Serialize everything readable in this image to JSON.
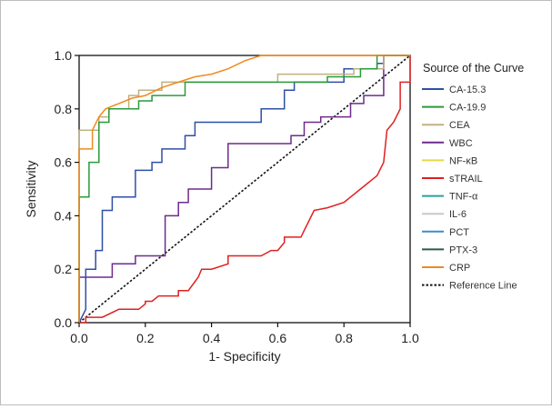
{
  "chart_data": {
    "type": "line",
    "xlabel": "1- Specificity",
    "ylabel": "Sensitivity",
    "xlim": [
      0,
      1
    ],
    "ylim": [
      0,
      1
    ],
    "x_ticks": [
      "0.0",
      "0.2",
      "0.4",
      "0.6",
      "0.8",
      "1.0"
    ],
    "y_ticks": [
      "0.0",
      "0.2",
      "0.4",
      "0.6",
      "0.8",
      "1.0"
    ],
    "legend_title": "Source of the Curve",
    "legend_position": "right",
    "grid": false,
    "series": [
      {
        "name": "CA-15.3",
        "color": "#2f4fa8",
        "points": [
          [
            0,
            0
          ],
          [
            0.02,
            0.05
          ],
          [
            0.02,
            0.2
          ],
          [
            0.05,
            0.2
          ],
          [
            0.05,
            0.27
          ],
          [
            0.07,
            0.27
          ],
          [
            0.07,
            0.42
          ],
          [
            0.1,
            0.42
          ],
          [
            0.1,
            0.47
          ],
          [
            0.17,
            0.47
          ],
          [
            0.17,
            0.57
          ],
          [
            0.22,
            0.57
          ],
          [
            0.22,
            0.6
          ],
          [
            0.25,
            0.6
          ],
          [
            0.25,
            0.65
          ],
          [
            0.32,
            0.65
          ],
          [
            0.32,
            0.7
          ],
          [
            0.35,
            0.7
          ],
          [
            0.35,
            0.75
          ],
          [
            0.55,
            0.75
          ],
          [
            0.55,
            0.8
          ],
          [
            0.62,
            0.8
          ],
          [
            0.62,
            0.87
          ],
          [
            0.65,
            0.87
          ],
          [
            0.65,
            0.9
          ],
          [
            0.8,
            0.9
          ],
          [
            0.8,
            0.95
          ],
          [
            0.9,
            0.95
          ],
          [
            0.9,
            0.97
          ],
          [
            0.92,
            0.97
          ],
          [
            0.92,
            1
          ],
          [
            1,
            1
          ]
        ]
      },
      {
        "name": "CA-19.9",
        "color": "#2a9a3a",
        "points": [
          [
            0,
            0
          ],
          [
            0,
            0.47
          ],
          [
            0.03,
            0.47
          ],
          [
            0.03,
            0.6
          ],
          [
            0.06,
            0.6
          ],
          [
            0.06,
            0.75
          ],
          [
            0.09,
            0.75
          ],
          [
            0.09,
            0.8
          ],
          [
            0.18,
            0.8
          ],
          [
            0.18,
            0.83
          ],
          [
            0.22,
            0.83
          ],
          [
            0.22,
            0.85
          ],
          [
            0.32,
            0.85
          ],
          [
            0.32,
            0.9
          ],
          [
            0.75,
            0.9
          ],
          [
            0.75,
            0.92
          ],
          [
            0.85,
            0.92
          ],
          [
            0.85,
            0.95
          ],
          [
            0.9,
            0.95
          ],
          [
            0.9,
            1
          ],
          [
            1,
            1
          ]
        ]
      },
      {
        "name": "CEA",
        "color": "#c0b080",
        "points": [
          [
            0,
            0
          ],
          [
            0,
            0.72
          ],
          [
            0.06,
            0.72
          ],
          [
            0.06,
            0.77
          ],
          [
            0.09,
            0.77
          ],
          [
            0.09,
            0.8
          ],
          [
            0.15,
            0.8
          ],
          [
            0.15,
            0.85
          ],
          [
            0.18,
            0.85
          ],
          [
            0.18,
            0.87
          ],
          [
            0.25,
            0.87
          ],
          [
            0.25,
            0.9
          ],
          [
            0.6,
            0.9
          ],
          [
            0.6,
            0.93
          ],
          [
            0.83,
            0.93
          ],
          [
            0.83,
            0.95
          ],
          [
            0.92,
            0.95
          ],
          [
            0.92,
            1
          ],
          [
            1,
            1
          ]
        ]
      },
      {
        "name": "WBC",
        "color": "#6e2a8e",
        "points": [
          [
            0,
            0
          ],
          [
            0,
            0.17
          ],
          [
            0.1,
            0.17
          ],
          [
            0.1,
            0.22
          ],
          [
            0.17,
            0.22
          ],
          [
            0.17,
            0.25
          ],
          [
            0.24,
            0.25
          ],
          [
            0.26,
            0.25
          ],
          [
            0.26,
            0.4
          ],
          [
            0.3,
            0.4
          ],
          [
            0.3,
            0.45
          ],
          [
            0.33,
            0.45
          ],
          [
            0.33,
            0.5
          ],
          [
            0.4,
            0.5
          ],
          [
            0.4,
            0.58
          ],
          [
            0.45,
            0.58
          ],
          [
            0.45,
            0.67
          ],
          [
            0.64,
            0.67
          ],
          [
            0.64,
            0.7
          ],
          [
            0.68,
            0.7
          ],
          [
            0.68,
            0.75
          ],
          [
            0.73,
            0.75
          ],
          [
            0.73,
            0.77
          ],
          [
            0.82,
            0.77
          ],
          [
            0.82,
            0.82
          ],
          [
            0.86,
            0.82
          ],
          [
            0.86,
            0.85
          ],
          [
            0.92,
            0.85
          ],
          [
            0.92,
            1
          ],
          [
            1,
            1
          ]
        ]
      },
      {
        "name": "NF-κB",
        "color": "#e8d84a",
        "points": []
      },
      {
        "name": "sTRAIL",
        "color": "#e02020",
        "points": [
          [
            0,
            0
          ],
          [
            0.02,
            0
          ],
          [
            0.02,
            0.02
          ],
          [
            0.07,
            0.02
          ],
          [
            0.12,
            0.05
          ],
          [
            0.18,
            0.05
          ],
          [
            0.2,
            0.07
          ],
          [
            0.2,
            0.08
          ],
          [
            0.22,
            0.08
          ],
          [
            0.24,
            0.1
          ],
          [
            0.3,
            0.1
          ],
          [
            0.3,
            0.12
          ],
          [
            0.33,
            0.12
          ],
          [
            0.36,
            0.17
          ],
          [
            0.37,
            0.2
          ],
          [
            0.4,
            0.2
          ],
          [
            0.45,
            0.22
          ],
          [
            0.45,
            0.25
          ],
          [
            0.55,
            0.25
          ],
          [
            0.58,
            0.27
          ],
          [
            0.6,
            0.27
          ],
          [
            0.62,
            0.3
          ],
          [
            0.62,
            0.32
          ],
          [
            0.67,
            0.32
          ],
          [
            0.71,
            0.42
          ],
          [
            0.75,
            0.43
          ],
          [
            0.8,
            0.45
          ],
          [
            0.85,
            0.5
          ],
          [
            0.9,
            0.55
          ],
          [
            0.92,
            0.6
          ],
          [
            0.93,
            0.72
          ],
          [
            0.95,
            0.75
          ],
          [
            0.97,
            0.8
          ],
          [
            0.97,
            0.9
          ],
          [
            1,
            0.9
          ],
          [
            1,
            1
          ]
        ]
      },
      {
        "name": "TNF-α",
        "color": "#2aa09a",
        "points": []
      },
      {
        "name": "IL-6",
        "color": "#c8c8c8",
        "points": []
      },
      {
        "name": "PCT",
        "color": "#3a8fc8",
        "points": []
      },
      {
        "name": "PTX-3",
        "color": "#2f5a48",
        "points": []
      },
      {
        "name": "CRP",
        "color": "#f08a1e",
        "points": [
          [
            0,
            0
          ],
          [
            0,
            0.65
          ],
          [
            0.04,
            0.65
          ],
          [
            0.04,
            0.72
          ],
          [
            0.06,
            0.77
          ],
          [
            0.08,
            0.8
          ],
          [
            0.12,
            0.82
          ],
          [
            0.16,
            0.84
          ],
          [
            0.2,
            0.85
          ],
          [
            0.25,
            0.88
          ],
          [
            0.3,
            0.9
          ],
          [
            0.35,
            0.92
          ],
          [
            0.4,
            0.93
          ],
          [
            0.45,
            0.95
          ],
          [
            0.5,
            0.98
          ],
          [
            0.55,
            1
          ],
          [
            1,
            1
          ]
        ]
      },
      {
        "name": "Reference Line",
        "color": "#111111",
        "dashed": true,
        "points": [
          [
            0,
            0
          ],
          [
            1,
            1
          ]
        ]
      }
    ]
  }
}
